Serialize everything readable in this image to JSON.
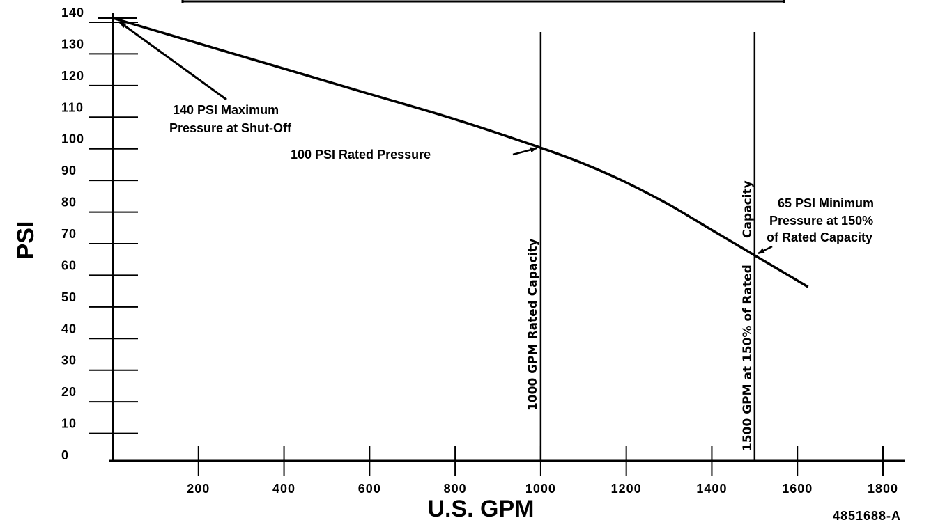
{
  "chart_data": {
    "type": "line",
    "title": "",
    "xlabel": "U.S. GPM",
    "ylabel": "PSI",
    "xlim": [
      0,
      1800
    ],
    "ylim": [
      0,
      140
    ],
    "x_ticks": [
      "200",
      "400",
      "600",
      "800",
      "1000",
      "1200",
      "1400",
      "1600",
      "1800"
    ],
    "y_ticks": [
      "0",
      "10",
      "20",
      "30",
      "40",
      "50",
      "60",
      "70",
      "80",
      "90",
      "100",
      "110",
      "120",
      "130",
      "140"
    ],
    "grid": false,
    "legend": "none",
    "series": [
      {
        "x": [
          0,
          200,
          400,
          600,
          800,
          1000,
          1100,
          1200,
          1300,
          1400,
          1500,
          1625
        ],
        "y": [
          140,
          132,
          124,
          116,
          108,
          99,
          94,
          88,
          81,
          73,
          65,
          55
        ]
      }
    ],
    "reference_lines": [
      {
        "x": 1000,
        "label": "1000 GPM Rated Capacity"
      },
      {
        "x": 1500,
        "label_lines": [
          "Capacity",
          "1500 GPM at 150% of Rated"
        ]
      }
    ],
    "annotations": [
      {
        "lines": [
          "140 PSI Maximum",
          "Pressure at Shut-Off"
        ],
        "target_x": 0,
        "target_y": 140
      },
      {
        "lines": [
          "100 PSI Rated Pressure"
        ],
        "target_x": 1000,
        "target_y": 99
      },
      {
        "lines": [
          "65 PSI Minimum",
          "Pressure at 150%",
          "of Rated Capacity"
        ],
        "target_x": 1500,
        "target_y": 65
      }
    ],
    "figure_code": "4851688-A"
  }
}
